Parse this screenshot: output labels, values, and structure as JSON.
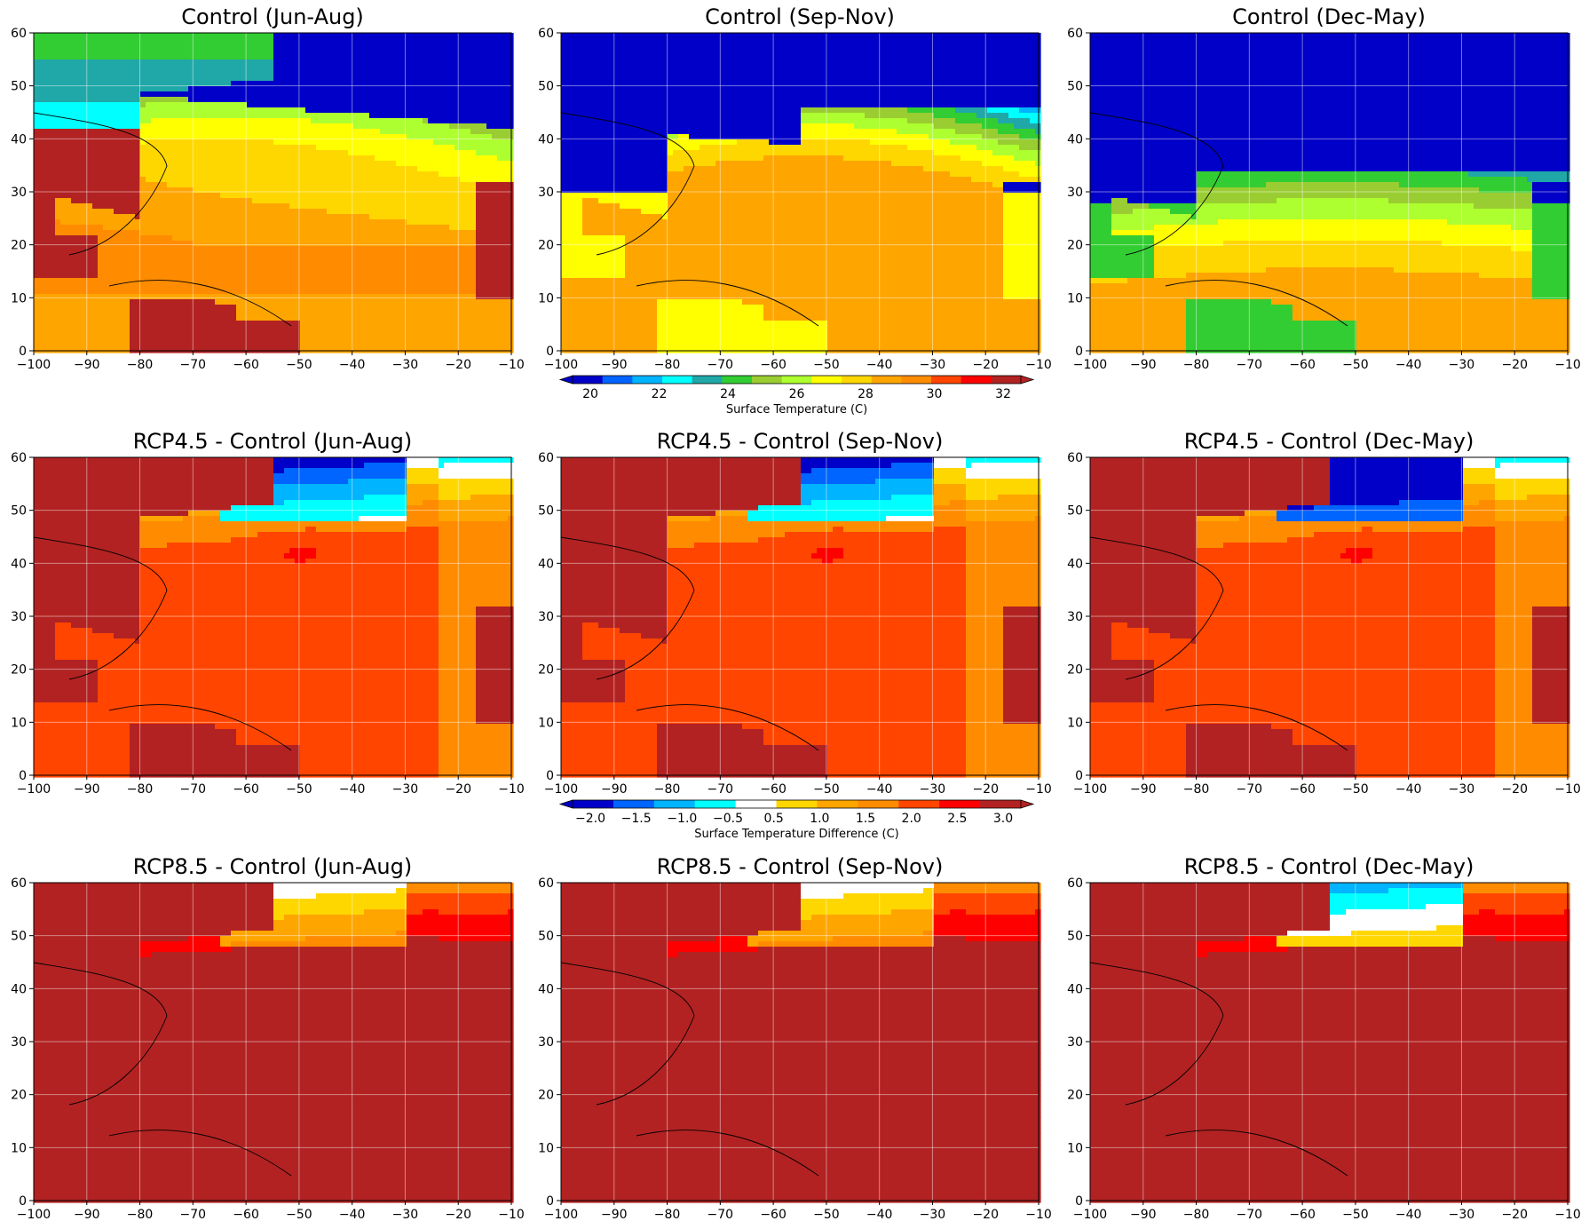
{
  "panels": [
    {
      "title": "Control (Jun-Aug)",
      "kind": "control",
      "season": "jja"
    },
    {
      "title": "Control (Sep-Nov)",
      "kind": "control",
      "season": "son"
    },
    {
      "title": "Control (Dec-May)",
      "kind": "control",
      "season": "djfmam"
    },
    {
      "title": "RCP4.5 - Control (Jun-Aug)",
      "kind": "diff45",
      "season": "jja"
    },
    {
      "title": "RCP4.5 - Control (Sep-Nov)",
      "kind": "diff45",
      "season": "son"
    },
    {
      "title": "RCP4.5 - Control (Dec-May)",
      "kind": "diff45",
      "season": "djfmam"
    },
    {
      "title": "RCP8.5 - Control (Jun-Aug)",
      "kind": "diff85",
      "season": "jja"
    },
    {
      "title": "RCP8.5 - Control (Sep-Nov)",
      "kind": "diff85",
      "season": "son"
    },
    {
      "title": "RCP8.5 - Control (Dec-May)",
      "kind": "diff85",
      "season": "djfmam"
    }
  ],
  "axes": {
    "x_ticks": [
      "−100",
      "−90",
      "−80",
      "−70",
      "−60",
      "−50",
      "−40",
      "−30",
      "−20",
      "−10"
    ],
    "y_ticks": [
      "0",
      "10",
      "20",
      "30",
      "40",
      "50",
      "60"
    ],
    "lon_range": [
      -100,
      -10
    ],
    "lat_range": [
      0,
      60
    ]
  },
  "colorbar_temp": {
    "label": "Surface Temperature (C)",
    "ticks": [
      "20",
      "22",
      "24",
      "26",
      "28",
      "30",
      "32"
    ],
    "range": [
      19,
      32
    ],
    "colors": [
      "#0000c8",
      "#0064ff",
      "#00b4ff",
      "#00ffff",
      "#20a8a8",
      "#32cd32",
      "#9acd32",
      "#adff2f",
      "#ffff00",
      "#ffd700",
      "#ffa500",
      "#ff8c00",
      "#ff4500",
      "#ff0000",
      "#b22222"
    ]
  },
  "colorbar_diff": {
    "label": "Surface Temperature Difference (C)",
    "ticks": [
      "−2.0",
      "−1.5",
      "−1.0",
      "−0.5",
      "0.5",
      "1.0",
      "1.5",
      "2.0",
      "2.5",
      "3.0"
    ],
    "range": [
      -2.0,
      3.0
    ],
    "colors": [
      "#0000c8",
      "#0064ff",
      "#00b4ff",
      "#00ffff",
      "#ffffff",
      "#ffd700",
      "#ffa500",
      "#ff8c00",
      "#ff4500",
      "#ff0000",
      "#b22222"
    ]
  }
}
